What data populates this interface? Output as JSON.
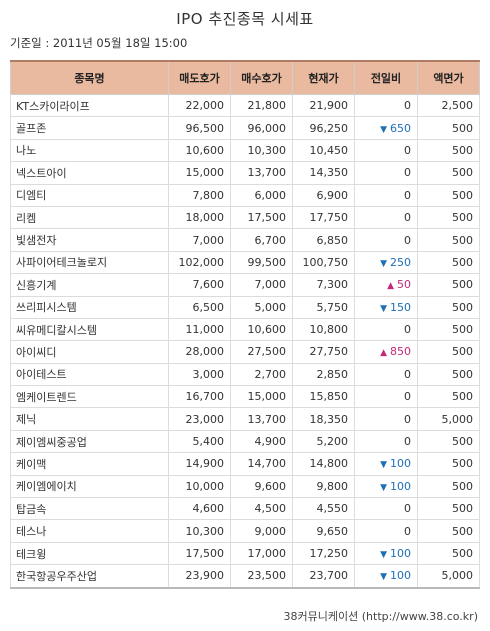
{
  "title": "IPO 추진종목 시세표",
  "date": "기준일 : 2011년 05월 18일 15:00",
  "headers": [
    "종목명",
    "매도호가",
    "매수호가",
    "현재가",
    "전일비",
    "액면가"
  ],
  "rows": [
    {
      "name": "KT스카이라이프",
      "ask": "22,000",
      "bid": "21,800",
      "price": "21,900",
      "dir": "",
      "change": "0",
      "par": "2,500"
    },
    {
      "name": "골프존",
      "ask": "96,500",
      "bid": "96,000",
      "price": "96,250",
      "dir": "down",
      "change": "650",
      "par": "500"
    },
    {
      "name": "나노",
      "ask": "10,600",
      "bid": "10,300",
      "price": "10,450",
      "dir": "",
      "change": "0",
      "par": "500"
    },
    {
      "name": "넥스트아이",
      "ask": "15,000",
      "bid": "13,700",
      "price": "14,350",
      "dir": "",
      "change": "0",
      "par": "500"
    },
    {
      "name": "디엠티",
      "ask": "7,800",
      "bid": "6,000",
      "price": "6,900",
      "dir": "",
      "change": "0",
      "par": "500"
    },
    {
      "name": "리켐",
      "ask": "18,000",
      "bid": "17,500",
      "price": "17,750",
      "dir": "",
      "change": "0",
      "par": "500"
    },
    {
      "name": "빛샘전자",
      "ask": "7,000",
      "bid": "6,700",
      "price": "6,850",
      "dir": "",
      "change": "0",
      "par": "500"
    },
    {
      "name": "사파이어테크놀로지",
      "ask": "102,000",
      "bid": "99,500",
      "price": "100,750",
      "dir": "down",
      "change": "250",
      "par": "500"
    },
    {
      "name": "신흥기계",
      "ask": "7,600",
      "bid": "7,000",
      "price": "7,300",
      "dir": "up",
      "change": "50",
      "par": "500"
    },
    {
      "name": "쓰리피시스템",
      "ask": "6,500",
      "bid": "5,000",
      "price": "5,750",
      "dir": "down",
      "change": "150",
      "par": "500"
    },
    {
      "name": "씨유메디칼시스템",
      "ask": "11,000",
      "bid": "10,600",
      "price": "10,800",
      "dir": "",
      "change": "0",
      "par": "500"
    },
    {
      "name": "아이씨디",
      "ask": "28,000",
      "bid": "27,500",
      "price": "27,750",
      "dir": "up",
      "change": "850",
      "par": "500"
    },
    {
      "name": "아이테스트",
      "ask": "3,000",
      "bid": "2,700",
      "price": "2,850",
      "dir": "",
      "change": "0",
      "par": "500"
    },
    {
      "name": "엠케이트렌드",
      "ask": "16,700",
      "bid": "15,000",
      "price": "15,850",
      "dir": "",
      "change": "0",
      "par": "500"
    },
    {
      "name": "제닉",
      "ask": "23,000",
      "bid": "13,700",
      "price": "18,350",
      "dir": "",
      "change": "0",
      "par": "5,000"
    },
    {
      "name": "제이엠씨중공업",
      "ask": "5,400",
      "bid": "4,900",
      "price": "5,200",
      "dir": "",
      "change": "0",
      "par": "500"
    },
    {
      "name": "케이맥",
      "ask": "14,900",
      "bid": "14,700",
      "price": "14,800",
      "dir": "down",
      "change": "100",
      "par": "500"
    },
    {
      "name": "케이엠에이치",
      "ask": "10,000",
      "bid": "9,600",
      "price": "9,800",
      "dir": "down",
      "change": "100",
      "par": "500"
    },
    {
      "name": "탑금속",
      "ask": "4,600",
      "bid": "4,500",
      "price": "4,550",
      "dir": "",
      "change": "0",
      "par": "500"
    },
    {
      "name": "테스나",
      "ask": "10,300",
      "bid": "9,000",
      "price": "9,650",
      "dir": "",
      "change": "0",
      "par": "500"
    },
    {
      "name": "테크윙",
      "ask": "17,500",
      "bid": "17,000",
      "price": "17,250",
      "dir": "down",
      "change": "100",
      "par": "500"
    },
    {
      "name": "한국항공우주산업",
      "ask": "23,900",
      "bid": "23,500",
      "price": "23,700",
      "dir": "down",
      "change": "100",
      "par": "5,000"
    }
  ],
  "arrows": {
    "up": "▲",
    "down": "▼"
  },
  "colors": {
    "header_bg": "#e9b9a0",
    "down": "#1f6fb5",
    "up": "#c42a7a"
  },
  "footer": "38커뮤니케이션 (http://www.38.co.kr)"
}
